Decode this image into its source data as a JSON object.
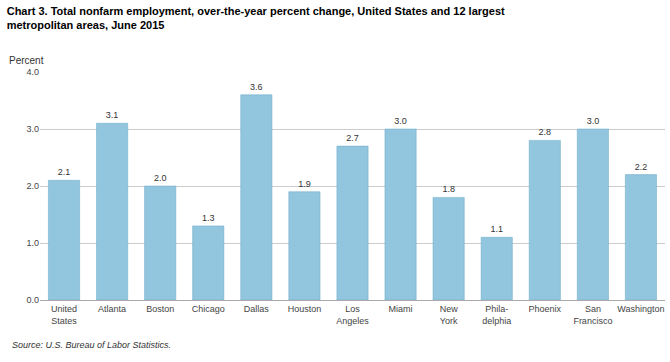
{
  "chart_data": {
    "type": "bar",
    "title": "Chart 3. Total nonfarm employment, over-the-year percent change, United States and 12 largest\nmetropolitan areas, June 2015",
    "ylabel": "Percent",
    "annotations": [
      "Source: U.S. Bureau of Labor Statistics."
    ],
    "categories": [
      "United\nStates",
      "Atlanta",
      "Boston",
      "Chicago",
      "Dallas",
      "Houston",
      "Los\nAngeles",
      "Miami",
      "New\nYork",
      "Phila-\ndelphia",
      "Phoenix",
      "San\nFrancisco",
      "Washington"
    ],
    "values": [
      2.1,
      3.1,
      2.0,
      1.3,
      3.6,
      1.9,
      2.7,
      3.0,
      1.8,
      1.1,
      2.8,
      3.0,
      2.2
    ],
    "value_labels": [
      "2.1",
      "3.1",
      "2.0",
      "1.3",
      "3.6",
      "1.9",
      "2.7",
      "3.0",
      "1.8",
      "1.1",
      "2.8",
      "3.0",
      "2.2"
    ],
    "data_labels": true,
    "color": "#92C5DE",
    "ylim": [
      0.0,
      4.0
    ],
    "yticks": [
      {
        "value": 0,
        "label": "0.0"
      },
      {
        "value": 1,
        "label": "1.0"
      },
      {
        "value": 2,
        "label": "2.0"
      },
      {
        "value": 3,
        "label": "3.0"
      },
      {
        "value": 4,
        "label": "4.0"
      }
    ],
    "grid": true
  }
}
